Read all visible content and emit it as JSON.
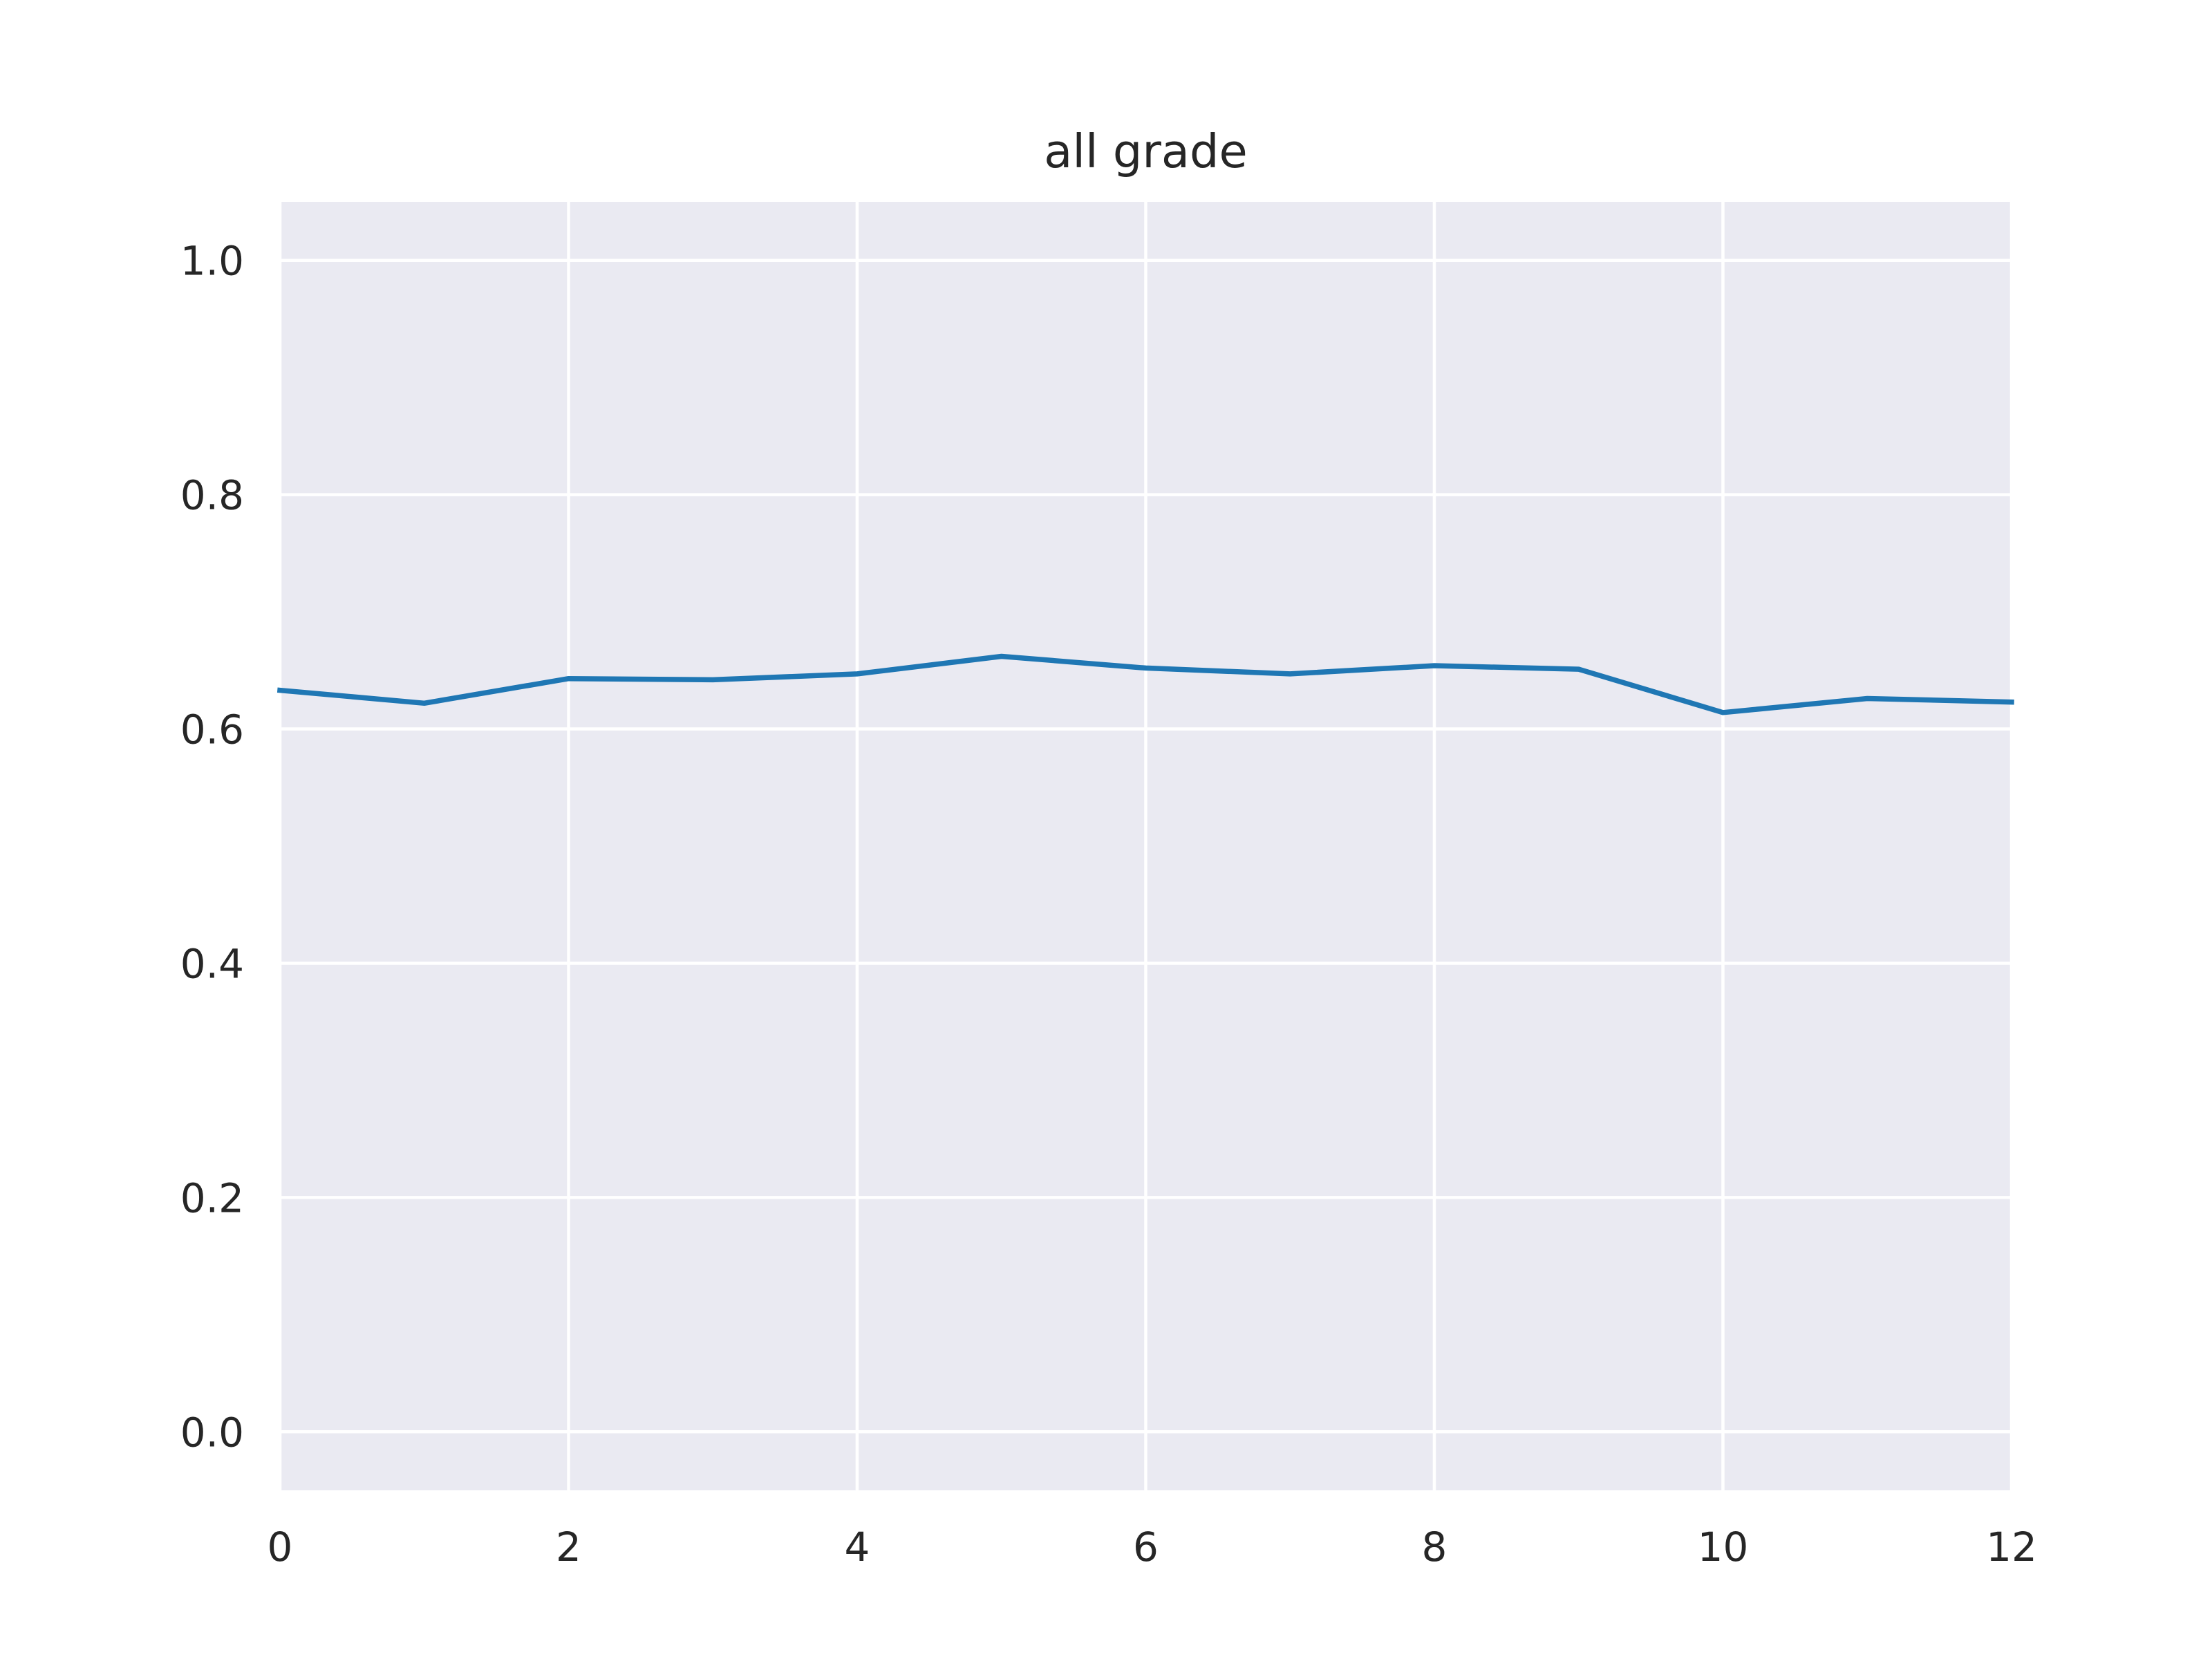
{
  "chart_data": {
    "type": "line",
    "title": "all grade",
    "xlabel": "",
    "ylabel": "",
    "xlim": [
      0,
      12
    ],
    "ylim": [
      -0.05,
      1.05
    ],
    "x_ticks": [
      0,
      2,
      4,
      6,
      8,
      10,
      12
    ],
    "y_ticks": [
      0.0,
      0.2,
      0.4,
      0.6,
      0.8,
      1.0
    ],
    "x_tick_labels": [
      "0",
      "2",
      "4",
      "6",
      "8",
      "10",
      "12"
    ],
    "y_tick_labels": [
      "0.0",
      "0.2",
      "0.4",
      "0.6",
      "0.8",
      "1.0"
    ],
    "grid": true,
    "background_color": "#eaeaf2",
    "grid_color": "#ffffff",
    "series": [
      {
        "color": "#1f77b4",
        "x": [
          0,
          1,
          2,
          3,
          4,
          5,
          6,
          7,
          8,
          9,
          10,
          11,
          12
        ],
        "y": [
          0.633,
          0.622,
          0.643,
          0.642,
          0.647,
          0.662,
          0.652,
          0.647,
          0.654,
          0.651,
          0.614,
          0.626,
          0.623
        ]
      }
    ]
  }
}
